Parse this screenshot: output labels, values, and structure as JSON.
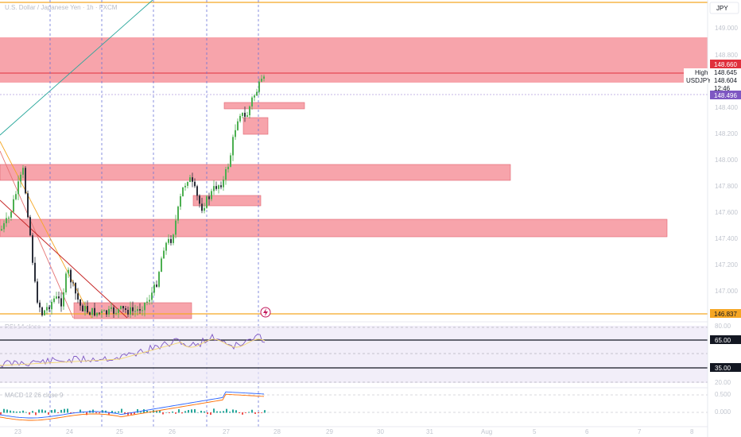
{
  "title": "U.S. Dollar / Japanese Yen · 1h · FXCM",
  "currency": "JPY",
  "price_axis": {
    "ticks": [
      "149.000",
      "148.800",
      "148.400",
      "148.200",
      "148.000",
      "147.800",
      "147.600",
      "147.400",
      "147.200",
      "147.000"
    ]
  },
  "badges": {
    "high_label": "High",
    "high_value": "148.660",
    "high_value2": "148.645",
    "symbol": "USDJPY",
    "last_value": "148.604",
    "countdown": "12:46",
    "ask_value": "148.496",
    "support_value": "146.837"
  },
  "rsi": {
    "title": "RSI 14 close",
    "upper_band": "65.00",
    "lower_band": "35.00",
    "top_value": "80.00",
    "bottom_value": "20.00"
  },
  "macd": {
    "title": "MACD 12 26 close 9",
    "top_value": "0.500",
    "zero_value": "0.000"
  },
  "time_axis": {
    "labels": [
      "23",
      "24",
      "25",
      "26",
      "27",
      "28",
      "29",
      "30",
      "31",
      "Aug",
      "5",
      "6",
      "7",
      "8"
    ]
  },
  "colors": {
    "zone_fill": "#f7a4ab",
    "zone_stroke": "#e06470",
    "orange": "#f5a623",
    "red_line": "#e0303c",
    "dashed_blue": "#6a74d8",
    "purple": "#7e57c2",
    "candle_up": "#4caf50",
    "candle_down": "#2a2e39"
  }
}
